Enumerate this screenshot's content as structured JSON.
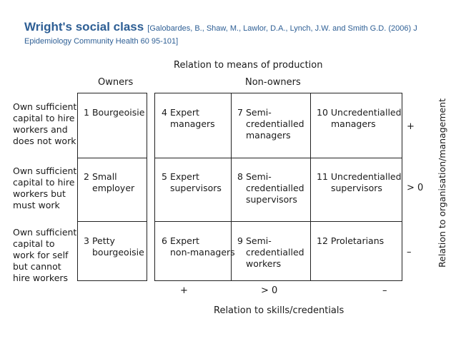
{
  "title": {
    "main": "Wright's social class",
    "reference": "[Galobardes, B., Shaw, M., Lawlor, D.A., Lynch, J.W. and Smith G.D. (2006) J Epidemiology Community Health 60 95-101]"
  },
  "diagram": {
    "top_axis_label": "Relation to means of production",
    "owners_header": "Owners",
    "nonowners_header": "Non-owners",
    "bottom_axis_label": "Relation to skills/credentials",
    "side_axis_label": "Relation to organisation/management",
    "row_labels": [
      "Own sufficient capital to hire workers and does not work",
      "Own sufficient capital to hire workers but must work",
      "Own sufficient capital to work for self but cannot hire workers"
    ],
    "owner_cells": [
      {
        "num": "1",
        "line1": "Bourgeoisie",
        "line2": ""
      },
      {
        "num": "2",
        "line1": "Small",
        "line2": "employer"
      },
      {
        "num": "3",
        "line1": "Petty",
        "line2": "bourgeoisie"
      }
    ],
    "nonowner_cells": [
      [
        {
          "num": "4",
          "lines": [
            "Expert",
            "managers"
          ]
        },
        {
          "num": "7",
          "lines": [
            "Semi-",
            "credentialled",
            "managers"
          ]
        },
        {
          "num": "10",
          "lines": [
            "Uncredentialled",
            "managers"
          ]
        }
      ],
      [
        {
          "num": "5",
          "lines": [
            "Expert",
            "supervisors"
          ]
        },
        {
          "num": "8",
          "lines": [
            "Semi-",
            "credentialled",
            "supervisors"
          ]
        },
        {
          "num": "11",
          "lines": [
            "Uncredentialled",
            "supervisors"
          ]
        }
      ],
      [
        {
          "num": "6",
          "lines": [
            "Expert",
            "non-managers"
          ]
        },
        {
          "num": "9",
          "lines": [
            "Semi-",
            "credentialled",
            "workers"
          ]
        },
        {
          "num": "12",
          "lines": [
            "Proletarians"
          ]
        }
      ]
    ],
    "right_signs": [
      "+",
      "> 0",
      "–"
    ],
    "bottom_signs": [
      "+",
      "> 0",
      "–"
    ]
  }
}
